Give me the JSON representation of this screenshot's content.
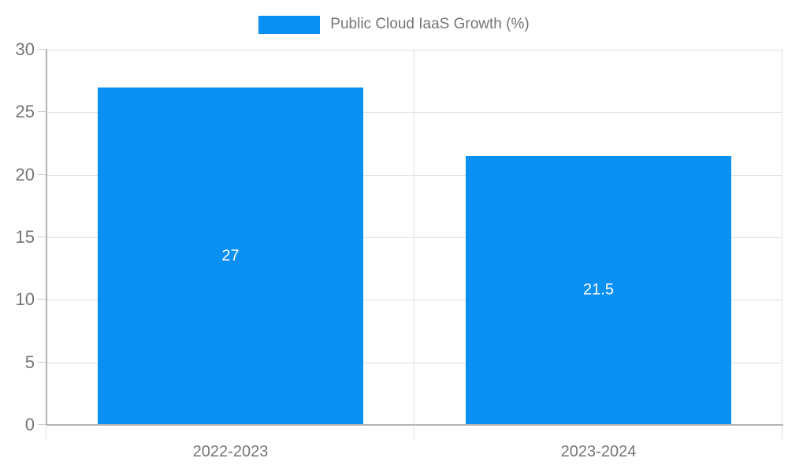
{
  "chart_data": {
    "type": "bar",
    "series_name": "Public Cloud IaaS Growth (%)",
    "categories": [
      "2022-2023",
      "2023-2024"
    ],
    "values": [
      27,
      21.5
    ],
    "data_labels": [
      "27",
      "21.5"
    ],
    "ylim": [
      0,
      30
    ],
    "yticks": [
      0,
      5,
      10,
      15,
      20,
      25,
      30
    ],
    "grid": true,
    "legend_position": "top",
    "bar_width_fraction": 0.72,
    "colors": {
      "bar": "#0a8ff2",
      "text": "#757575",
      "data_label_text": "#ffffff",
      "gridline": "#e0e0e0",
      "axis_line": "#b3b3b3",
      "tick": "#cccccc",
      "bottom_tick": "#e0e0e0",
      "background": "#ffffff"
    }
  }
}
